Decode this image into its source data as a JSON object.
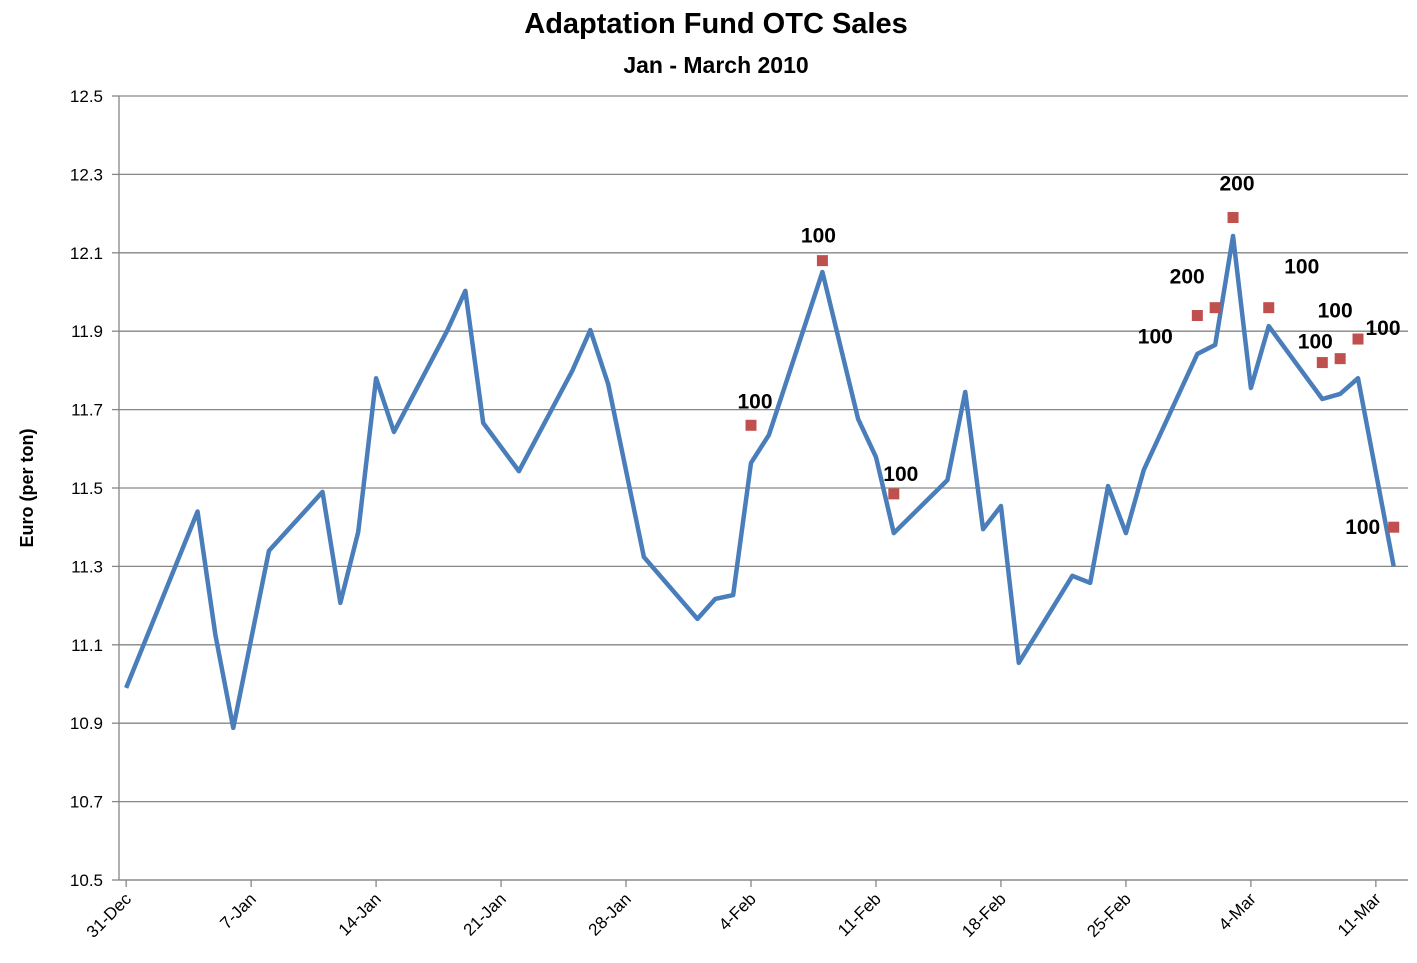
{
  "chart_data": {
    "type": "line",
    "title": "Adaptation Fund OTC  Sales",
    "subtitle": "Jan - March 2010",
    "y_label": "Euro (per ton)",
    "color": "#4a7ebb",
    "x": [
      0,
      4,
      5,
      6,
      8,
      11,
      12,
      13,
      14,
      15,
      18,
      19,
      20,
      22,
      25,
      26,
      27,
      29,
      32,
      33,
      34,
      35,
      36,
      39,
      41,
      42,
      43,
      46,
      47,
      48,
      49,
      50,
      53,
      54,
      55,
      56,
      57,
      60,
      61,
      62,
      63,
      64,
      67,
      68,
      69,
      71
    ],
    "values": [
      10.99,
      11.44,
      11.125,
      10.888,
      11.34,
      11.49,
      11.207,
      11.388,
      11.78,
      11.643,
      11.903,
      12.003,
      11.666,
      11.543,
      11.8,
      11.903,
      11.765,
      11.324,
      11.166,
      11.217,
      11.227,
      11.564,
      11.635,
      12.051,
      11.676,
      11.579,
      11.385,
      11.52,
      11.745,
      11.395,
      11.454,
      11.054,
      11.276,
      11.258,
      11.505,
      11.385,
      11.546,
      11.842,
      11.865,
      12.143,
      11.755,
      11.913,
      11.727,
      11.74,
      11.78,
      11.3
    ],
    "trades": {
      "color": "#c0504d",
      "x": [
        35,
        39,
        43,
        60,
        61,
        62,
        64,
        67,
        68,
        69,
        71
      ],
      "values": [
        11.66,
        12.08,
        11.485,
        11.94,
        11.96,
        12.19,
        11.96,
        11.82,
        11.83,
        11.88,
        11.4
      ],
      "volumes": [
        100,
        100,
        100,
        100,
        200,
        200,
        100,
        100,
        100,
        100,
        100
      ]
    },
    "xlim": [
      -0.4,
      71.8
    ],
    "xticks": [
      {
        "value": 0,
        "label": "31-Dec"
      },
      {
        "value": 7,
        "label": "7-Jan"
      },
      {
        "value": 14,
        "label": "14-Jan"
      },
      {
        "value": 21,
        "label": "21-Jan"
      },
      {
        "value": 28,
        "label": "28-Jan"
      },
      {
        "value": 35,
        "label": "4-Feb"
      },
      {
        "value": 42,
        "label": "11-Feb"
      },
      {
        "value": 49,
        "label": "18-Feb"
      },
      {
        "value": 56,
        "label": "25-Feb"
      },
      {
        "value": 63,
        "label": "4-Mar"
      },
      {
        "value": 70,
        "label": "11-Mar"
      }
    ],
    "ylim": [
      10.5,
      12.5
    ],
    "yticks": [
      10.5,
      10.7,
      10.9,
      11.1,
      11.3,
      11.5,
      11.7,
      11.9,
      12.1,
      12.3,
      12.5
    ],
    "grid": true
  }
}
